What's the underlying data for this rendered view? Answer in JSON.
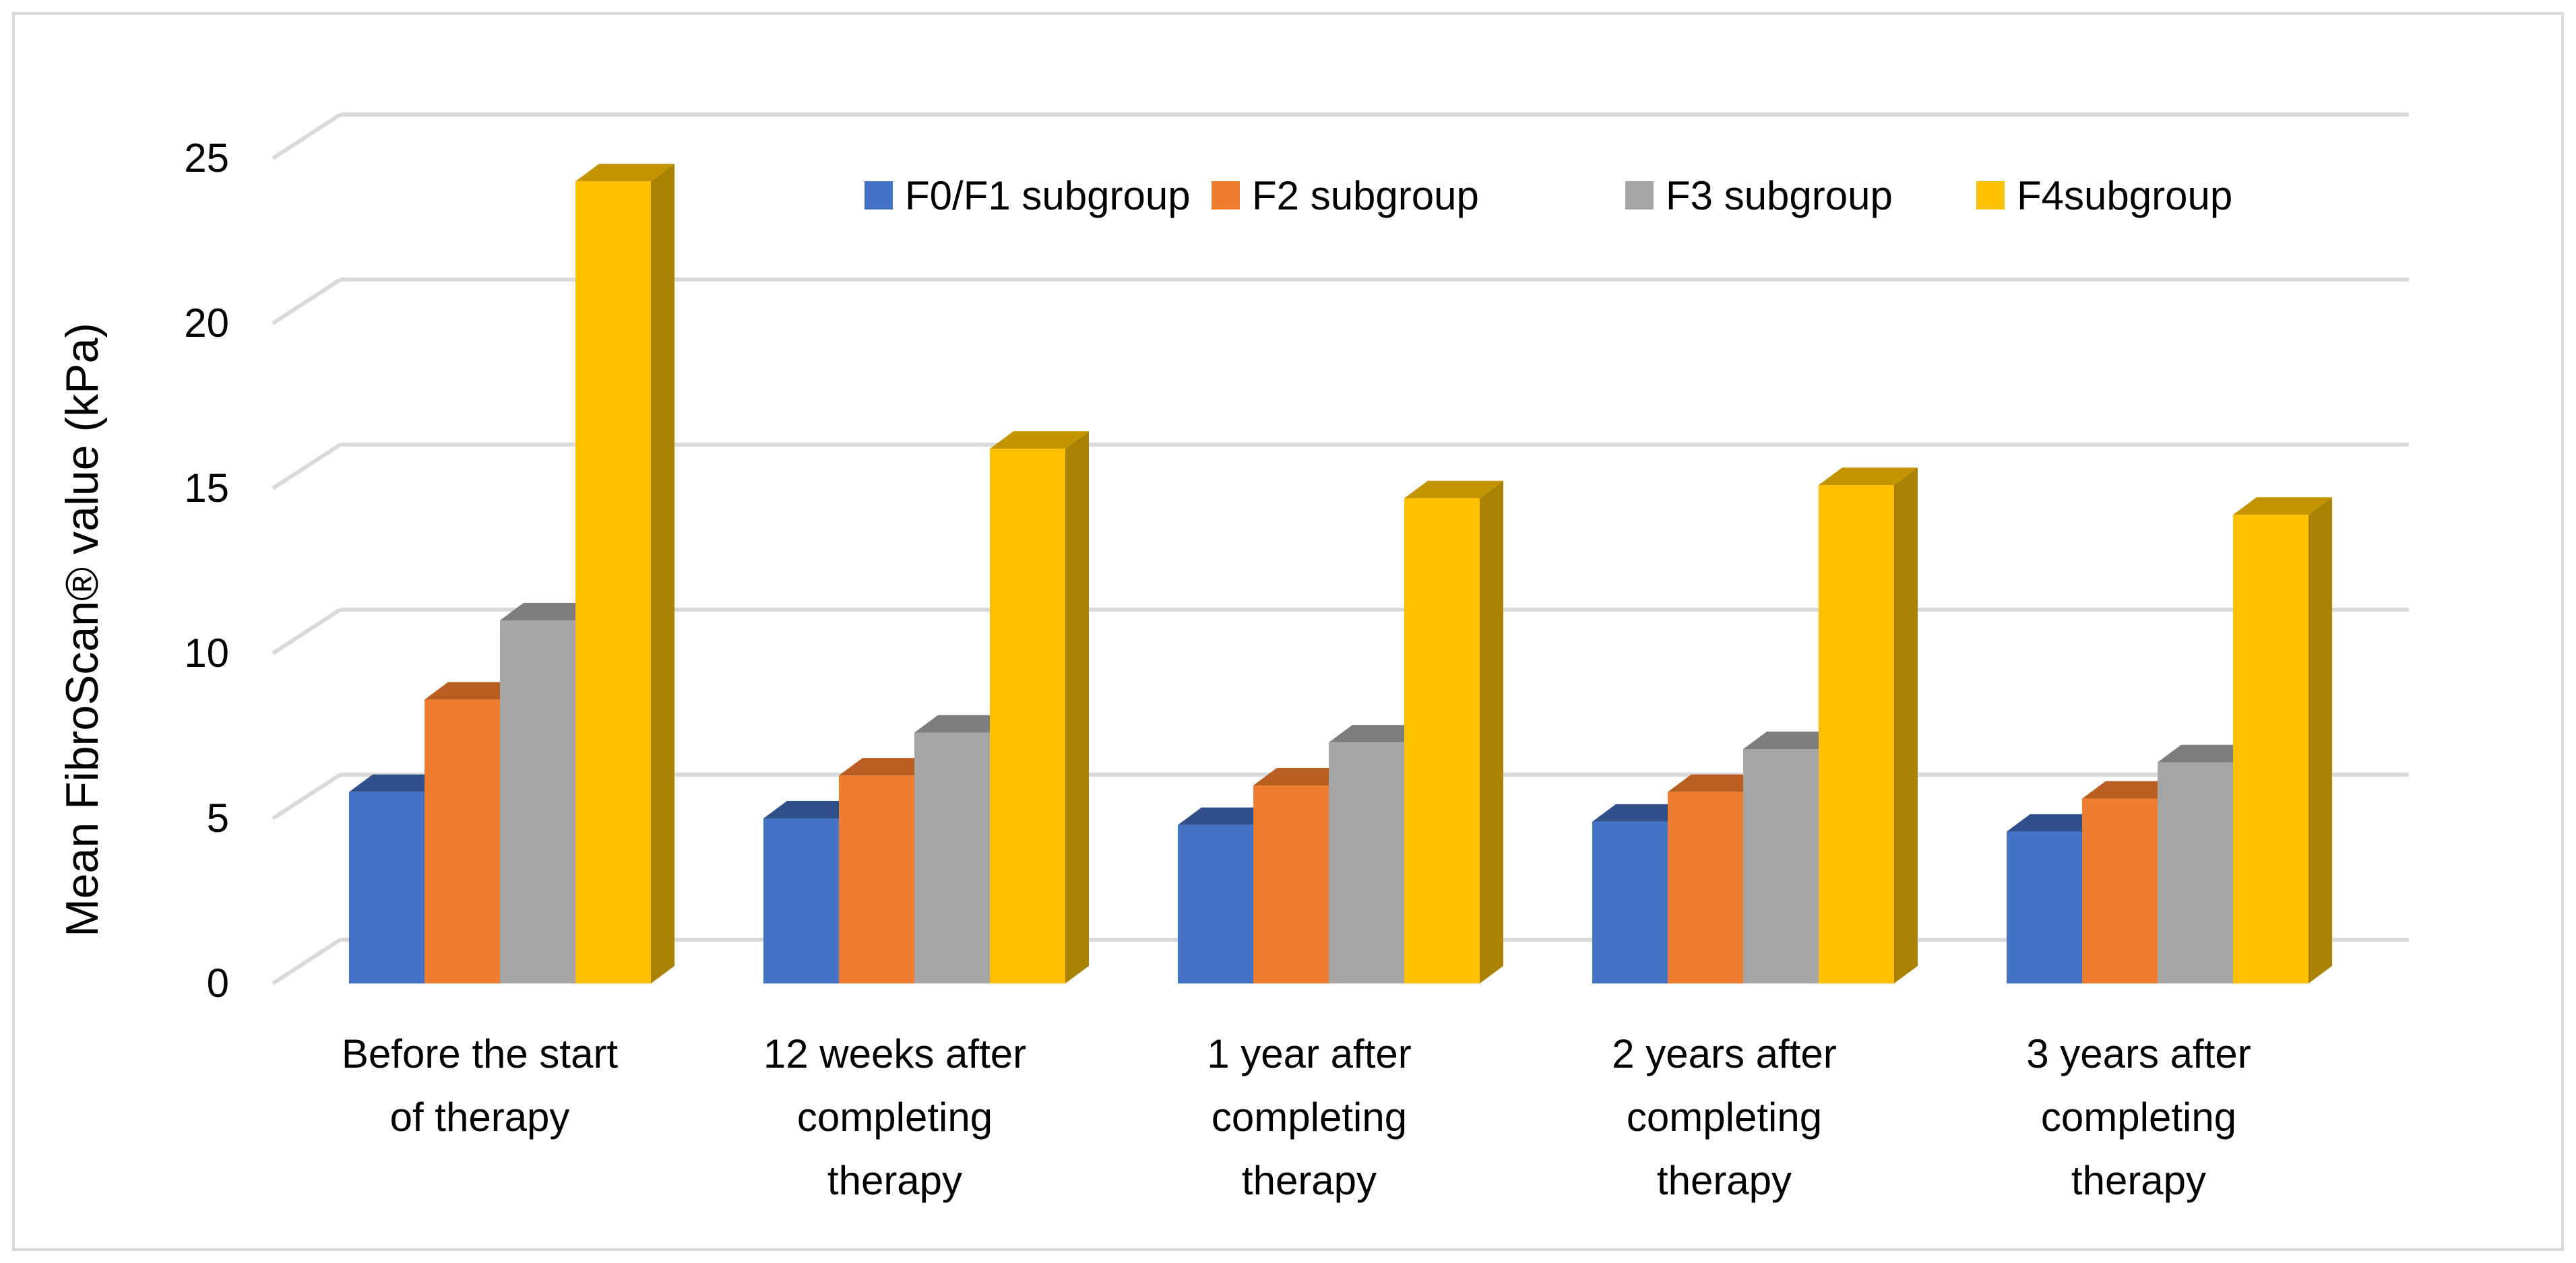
{
  "chart_data": {
    "type": "bar",
    "style": "3d-clustered-column",
    "title": "",
    "xlabel": "",
    "ylabel": "Mean FibroScan® value (kPa)",
    "ylim": [
      0,
      25
    ],
    "yticks": [
      "0",
      "5",
      "10",
      "15",
      "20",
      "25"
    ],
    "grid": true,
    "legend_position": "top-right",
    "categories": [
      [
        "Before the start",
        "of therapy"
      ],
      [
        "12 weeks after",
        "completing",
        "therapy"
      ],
      [
        "1 year after",
        "completing",
        "therapy"
      ],
      [
        "2 years after",
        "completing",
        "therapy"
      ],
      [
        "3 years after",
        "completing",
        "therapy"
      ]
    ],
    "series": [
      {
        "name": "F0/F1 subgroup",
        "color": "#4472C4",
        "top": "#30508A",
        "side": "#2C4A80",
        "values": [
          5.8,
          5.0,
          4.8,
          4.9,
          4.6
        ]
      },
      {
        "name": "F2 subgroup",
        "color": "#ED7D31",
        "top": "#B85E20",
        "side": "#A6561C",
        "values": [
          8.6,
          6.3,
          6.0,
          5.8,
          5.6
        ]
      },
      {
        "name": "F3 subgroup",
        "color": "#A5A5A5",
        "top": "#7D7D7D",
        "side": "#707070",
        "values": [
          11.0,
          7.6,
          7.3,
          7.1,
          6.7
        ]
      },
      {
        "name": "F4subgroup",
        "color": "#FFC000",
        "top": "#C49300",
        "side": "#A88200",
        "values": [
          24.3,
          16.2,
          14.7,
          15.1,
          14.2
        ]
      }
    ]
  }
}
